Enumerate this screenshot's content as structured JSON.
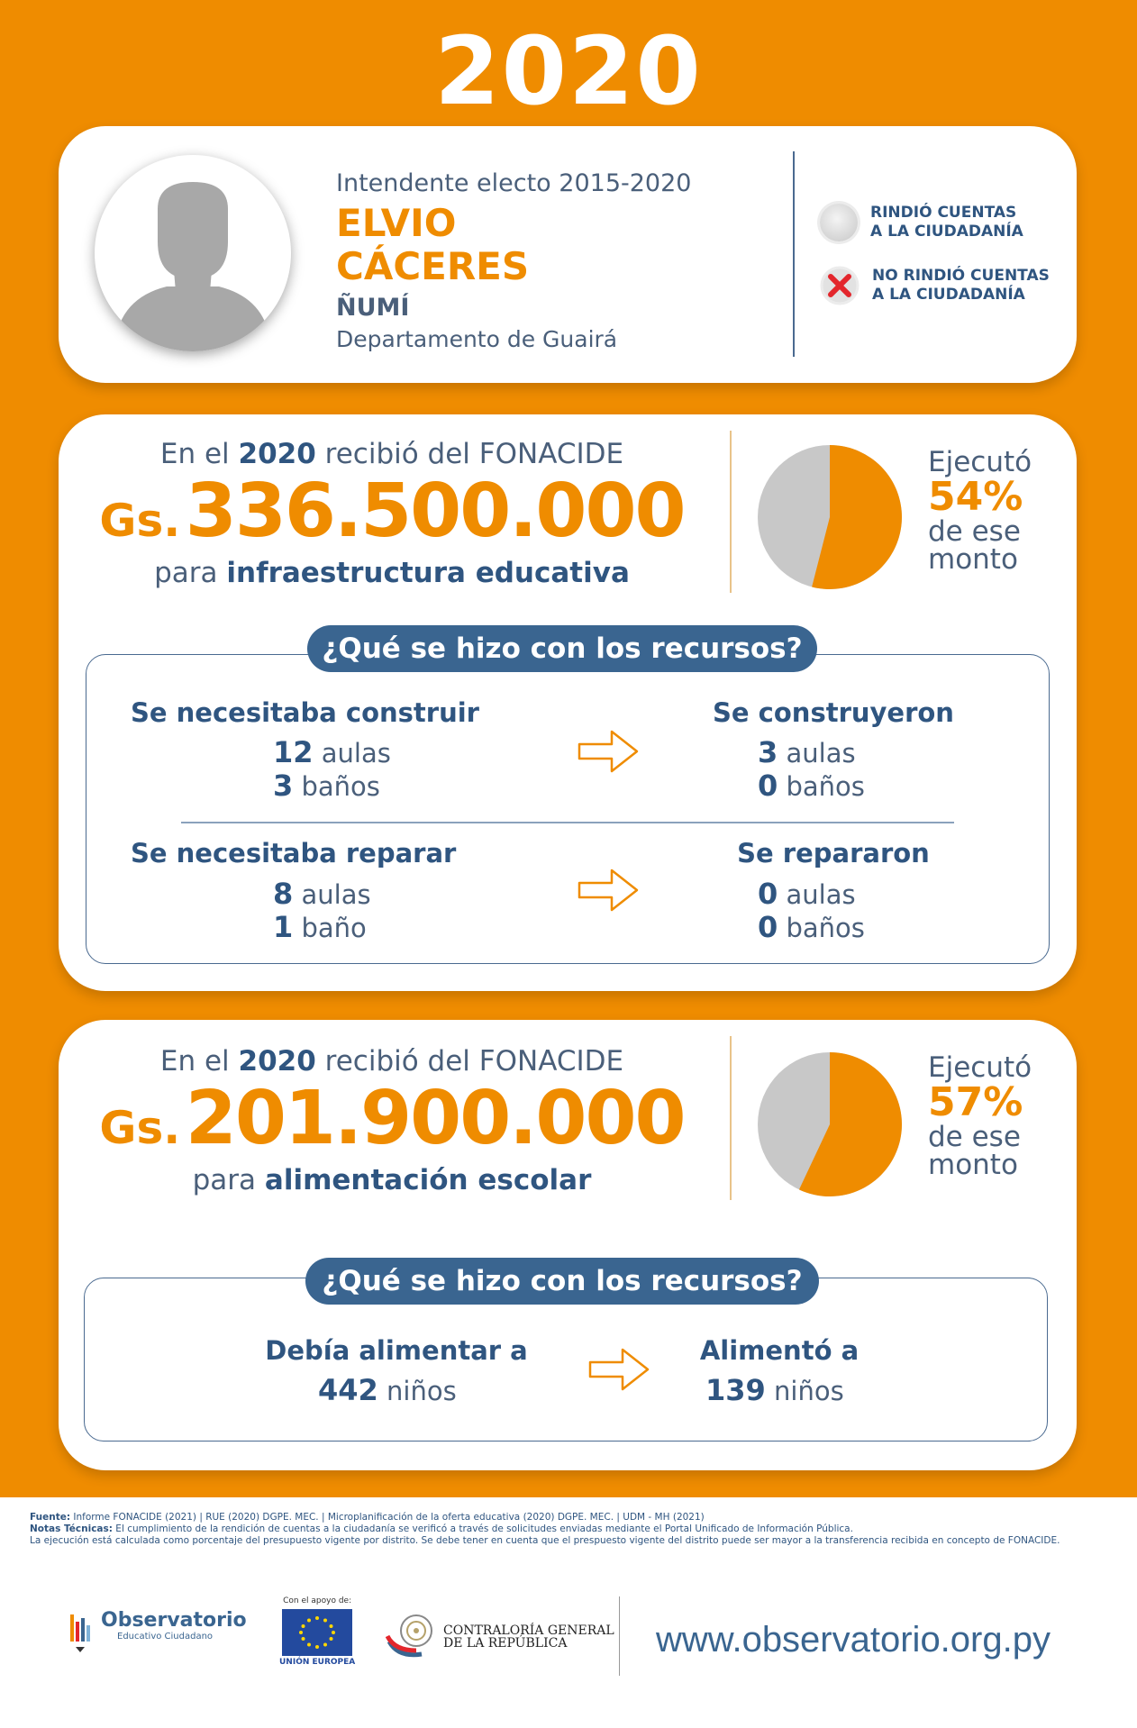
{
  "year": "2020",
  "profile": {
    "role": "Intendente electo 2015-2020",
    "name_line1": "ELVIO",
    "name_line2": "CÁCERES",
    "city": "ÑUMÍ",
    "department": "Departamento de Guairá"
  },
  "legend": {
    "rendered": "RINDIÓ CUENTAS A LA CIUDADANÍA",
    "rendered_l1": "RINDIÓ CUENTAS",
    "rendered_l2": "A LA CIUDADANÍA",
    "not_rendered_l1": "NO RINDIÓ CUENTAS",
    "not_rendered_l2": "A LA CIUDADANÍA",
    "status": "not_rendered"
  },
  "infra": {
    "head_pre": "En el ",
    "head_year": "2020",
    "head_post": " recibió del FONACIDE",
    "currency": "Gs.",
    "amount": "336.500.000",
    "sub_pre": "para ",
    "sub_bold": "infraestructura educativa",
    "exec_label": "Ejecutó",
    "exec_pct": "54%",
    "exec_value": 54,
    "exec_rest_l1": "de ese",
    "exec_rest_l2": "monto",
    "question": "¿Qué se hizo con los recursos?",
    "need_build": "Se necesitaba construir",
    "need_build_aulas_n": "12",
    "need_build_aulas_u": "aulas",
    "need_build_banos_n": "3",
    "need_build_banos_u": "baños",
    "built": "Se construyeron",
    "built_aulas_n": "3",
    "built_aulas_u": "aulas",
    "built_banos_n": "0",
    "built_banos_u": "baños",
    "need_repair": "Se necesitaba reparar",
    "need_repair_aulas_n": "8",
    "need_repair_aulas_u": "aulas",
    "need_repair_banos_n": "1",
    "need_repair_banos_u": "baño",
    "repaired": "Se repararon",
    "repaired_aulas_n": "0",
    "repaired_aulas_u": "aulas",
    "repaired_banos_n": "0",
    "repaired_banos_u": "baños"
  },
  "food": {
    "head_pre": "En el ",
    "head_year": "2020",
    "head_post": " recibió del FONACIDE",
    "currency": "Gs.",
    "amount": "201.900.000",
    "sub_pre": "para ",
    "sub_bold": "alimentación escolar",
    "exec_label": "Ejecutó",
    "exec_pct": "57%",
    "exec_value": 57,
    "exec_rest_l1": "de ese",
    "exec_rest_l2": "monto",
    "question": "¿Qué se hizo con los recursos?",
    "should_feed": "Debía alimentar a",
    "should_feed_n": "442",
    "should_feed_u": "niños",
    "fed": "Alimentó a",
    "fed_n": "139",
    "fed_u": "niños"
  },
  "footer": {
    "source_label": "Fuente:",
    "source_text": " Informe FONACIDE (2021) | RUE (2020) DGPE. MEC. | Microplanificación de la oferta educativa (2020) DGPE. MEC. | UDM - MH (2021)",
    "notes_label": "Notas Técnicas:",
    "notes_text": " El cumplimiento de la rendición de cuentas a la ciudadanía se verificó a través de solicitudes enviadas mediante el Portal Unificado de Información Pública.",
    "notes_text2": "La ejecución está calculada como porcentaje del presupuesto vigente por distrito. Se debe tener en cuenta que el prespuesto vigente del distrito puede ser mayor a la transferencia recibida en concepto de FONACIDE."
  },
  "logos": {
    "observatorio": "Observatorio",
    "observatorio_sub": "Educativo Ciudadano",
    "eu_support": "Con el apoyo de:",
    "eu_label": "UNIÓN EUROPEA",
    "cgr_l1": "CONTRALORÍA GENERAL",
    "cgr_l2": "DE LA REPÚBLICA",
    "url": "www.observatorio.org.py"
  },
  "colors": {
    "orange": "#EF8C00",
    "navy": "#2f5580",
    "pill": "#3a6590",
    "grey_slice": "#c8c8c8"
  }
}
